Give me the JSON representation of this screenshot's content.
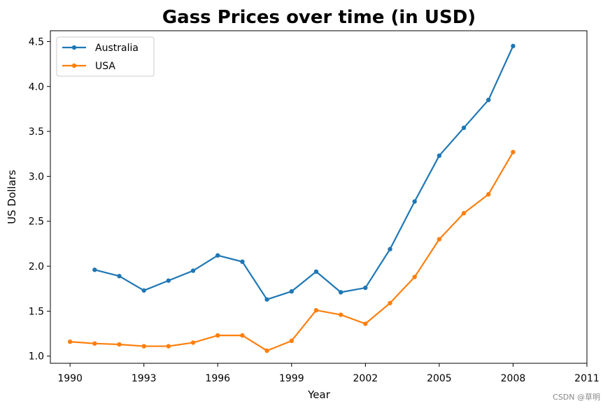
{
  "chart_data": {
    "type": "line",
    "title": "Gass Prices over time (in USD)",
    "xlabel": "Year",
    "ylabel": "US Dollars",
    "xlim": [
      1989.2,
      2011
    ],
    "ylim": [
      0.92,
      4.62
    ],
    "xticks": [
      1990,
      1993,
      1996,
      1999,
      2002,
      2005,
      2008,
      2011
    ],
    "yticks": [
      1.0,
      1.5,
      2.0,
      2.5,
      3.0,
      3.5,
      4.0,
      4.5
    ],
    "legend": "upper-left",
    "grid": false,
    "series": [
      {
        "name": "Australia",
        "color": "#1f77b4",
        "x": [
          1991,
          1992,
          1993,
          1994,
          1995,
          1996,
          1997,
          1998,
          1999,
          2000,
          2001,
          2002,
          2003,
          2004,
          2005,
          2006,
          2007,
          2008
        ],
        "y": [
          1.96,
          1.89,
          1.73,
          1.84,
          1.95,
          2.12,
          2.05,
          1.63,
          1.72,
          1.94,
          1.71,
          1.76,
          2.19,
          2.72,
          3.23,
          3.54,
          3.85,
          4.45
        ]
      },
      {
        "name": "USA",
        "color": "#ff7f0e",
        "x": [
          1990,
          1991,
          1992,
          1993,
          1994,
          1995,
          1996,
          1997,
          1998,
          1999,
          2000,
          2001,
          2002,
          2003,
          2004,
          2005,
          2006,
          2007,
          2008
        ],
        "y": [
          1.16,
          1.14,
          1.13,
          1.11,
          1.11,
          1.15,
          1.23,
          1.23,
          1.06,
          1.17,
          1.51,
          1.46,
          1.36,
          1.59,
          1.88,
          2.3,
          2.59,
          2.8,
          3.27
        ]
      }
    ]
  },
  "watermark": "CSDN @草明"
}
